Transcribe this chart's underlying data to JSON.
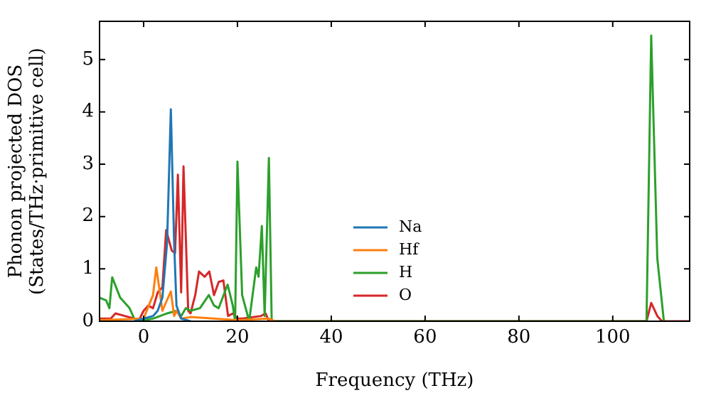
{
  "chart_data": {
    "type": "line",
    "xlabel": "Frequency (THz)",
    "ylabel": "Phonon projected DOS\n(States/THz·primitive cell)",
    "xlim": [
      -9.4,
      116.4
    ],
    "ylim": [
      0,
      5.73
    ],
    "xticks": [
      0,
      20,
      40,
      60,
      80,
      100
    ],
    "yticks": [
      0,
      1,
      2,
      3,
      4,
      5
    ],
    "grid": false,
    "legend": "bottom",
    "marker": "none",
    "line_style": "solid",
    "series": [
      {
        "name": "Na",
        "color": "#1f77b4",
        "x": [
          -2,
          0,
          2,
          3,
          4,
          5,
          5.8,
          6.5,
          7,
          8,
          10
        ],
        "values": [
          0,
          0.05,
          0.1,
          0.2,
          0.45,
          1.5,
          4.05,
          1.5,
          0.3,
          0.05,
          0
        ]
      },
      {
        "name": "Hf",
        "color": "#ff7f0e",
        "x": [
          -9.4,
          0,
          2,
          2.7,
          4,
          5.8,
          6.5,
          7,
          8,
          10,
          15,
          20,
          26.7,
          28
        ],
        "values": [
          0.02,
          0.05,
          0.5,
          1.03,
          0.2,
          0.57,
          0.1,
          0.2,
          0.05,
          0.08,
          0.05,
          0.02,
          0.05,
          0
        ]
      },
      {
        "name": "H",
        "color": "#2ca02c",
        "x": [
          -9.4,
          -8,
          -7.3,
          -6.7,
          -5,
          -3,
          -2,
          -1,
          2,
          5,
          7,
          8,
          9,
          10,
          12,
          13.9,
          15,
          16,
          17.9,
          19,
          19.5,
          20,
          21,
          22.5,
          24,
          24.5,
          25.2,
          25.8,
          26.7,
          27.3,
          28,
          107.2,
          108.2,
          109.5,
          110.9
        ],
        "values": [
          0.45,
          0.4,
          0.25,
          0.84,
          0.45,
          0.25,
          0.05,
          0,
          0.05,
          0.15,
          0.2,
          0.1,
          0.25,
          0.2,
          0.25,
          0.5,
          0.3,
          0.25,
          0.7,
          0.3,
          0,
          3.05,
          0.5,
          0,
          1.03,
          0.85,
          1.82,
          0.1,
          3.12,
          0,
          0,
          0,
          5.46,
          1.2,
          0
        ]
      },
      {
        "name": "O",
        "color": "#d62728",
        "x": [
          -9.4,
          -7,
          -6,
          -4,
          -2,
          -1,
          0,
          1,
          2,
          3,
          4,
          4.8,
          6,
          6.7,
          7.3,
          8,
          8.5,
          9.5,
          10,
          11,
          11.8,
          13,
          14,
          15,
          16,
          17,
          18,
          19,
          20,
          21,
          25,
          26,
          26.7,
          27.3,
          107.2,
          108.2,
          109.5,
          110.5,
          116.4
        ],
        "values": [
          0.05,
          0.05,
          0.15,
          0.1,
          0.05,
          0.02,
          0.2,
          0.3,
          0.25,
          0.55,
          0.65,
          1.74,
          1.35,
          1.3,
          2.8,
          0.55,
          2.96,
          0.2,
          0.15,
          0.5,
          0.95,
          0.85,
          0.95,
          0.5,
          0.75,
          0.78,
          0.1,
          0.15,
          0.05,
          0.05,
          0.1,
          0.15,
          0,
          0,
          0,
          0.35,
          0.1,
          0,
          0
        ]
      }
    ]
  }
}
